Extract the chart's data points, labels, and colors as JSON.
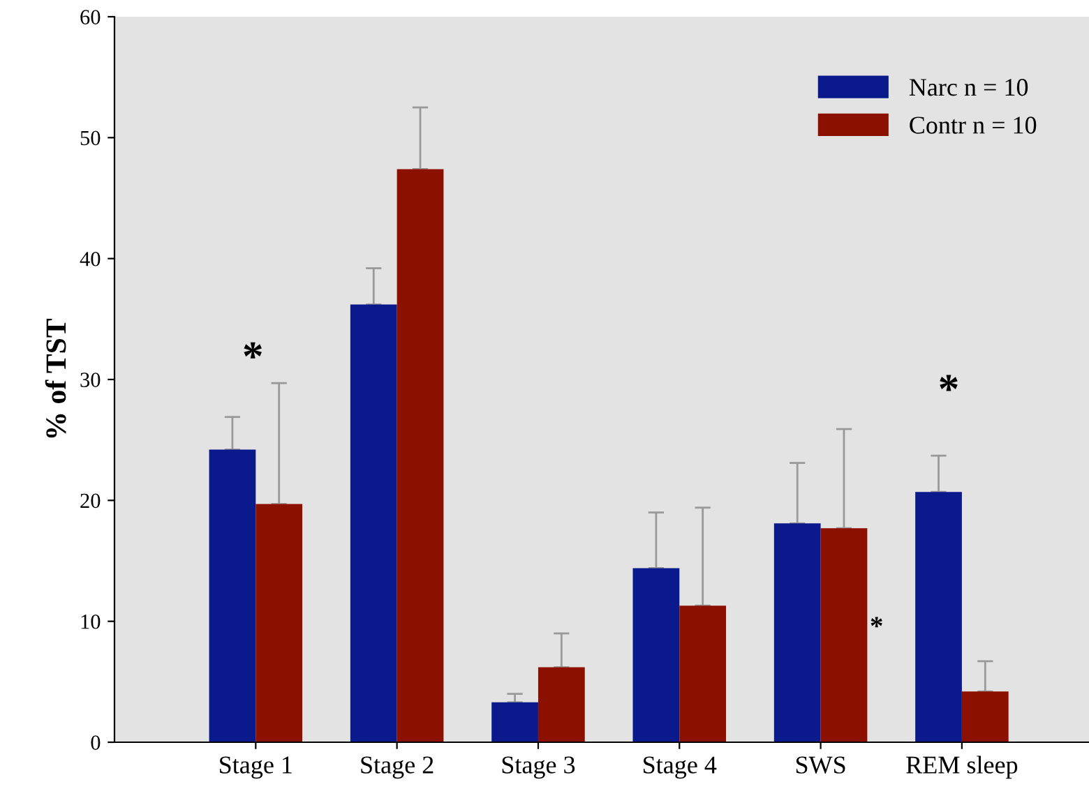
{
  "chart_data": {
    "type": "bar",
    "ylabel": "% of TST",
    "categories": [
      "Stage 1",
      "Stage 2",
      "Stage 3",
      "Stage 4",
      "SWS",
      "REM sleep"
    ],
    "series": [
      {
        "name": "Narc n = 10",
        "color": "#0a1a8c",
        "values": [
          24.2,
          36.2,
          3.3,
          14.4,
          18.1,
          20.7
        ],
        "errors": [
          [
            24.2,
            26.9
          ],
          [
            36.2,
            39.2
          ],
          [
            3.3,
            4.0
          ],
          [
            14.4,
            19.0
          ],
          [
            18.1,
            23.1
          ],
          [
            20.7,
            23.7
          ]
        ]
      },
      {
        "name": "Contr n = 10",
        "color": "#8b1000",
        "values": [
          19.7,
          47.4,
          6.2,
          11.3,
          17.7,
          4.2
        ],
        "errors": [
          [
            19.7,
            29.7
          ],
          [
            47.4,
            52.5
          ],
          [
            6.2,
            9.0
          ],
          [
            11.3,
            19.4
          ],
          [
            17.7,
            25.9
          ],
          [
            4.2,
            6.7
          ]
        ]
      }
    ],
    "ylim": [
      0,
      60
    ],
    "yticks": [
      0,
      10,
      20,
      30,
      40,
      50,
      60
    ],
    "grid": false,
    "legend": "top right",
    "annotations": [
      "*",
      "*",
      {
        "text": "*",
        "x": "SWS",
        "y": 8.4
      }
    ]
  }
}
